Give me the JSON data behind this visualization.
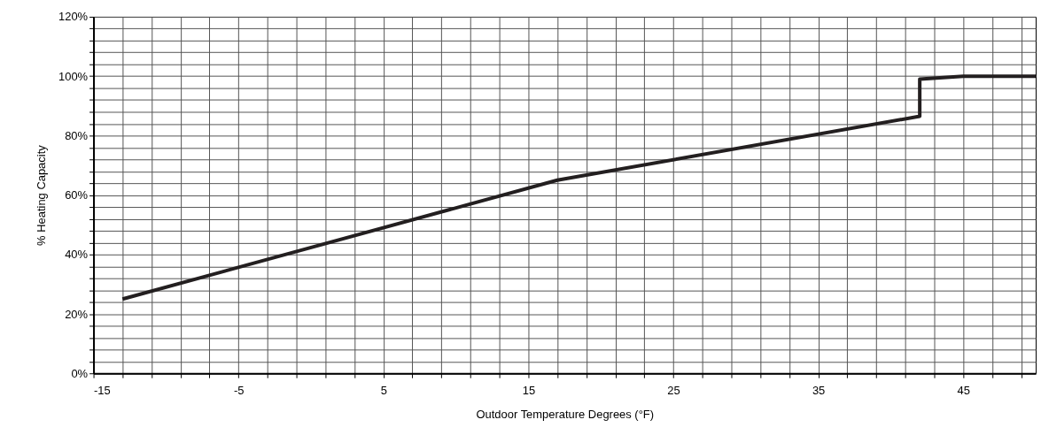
{
  "chart_data": {
    "type": "line",
    "xlabel": "Outdoor Temperature Degrees (°F)",
    "ylabel": "% Heating Capacity",
    "series": [
      {
        "color": "#231f20",
        "x": [
          -13,
          17,
          42,
          42,
          45,
          50
        ],
        "values": [
          25,
          65,
          86.5,
          99,
          100,
          100
        ]
      }
    ],
    "xlim": [
      -15,
      50
    ],
    "xticks": [
      -15,
      -5,
      5,
      15,
      25,
      35,
      45
    ],
    "ylim": [
      0,
      120
    ],
    "yticks": [
      {
        "value": 0,
        "label": "0%"
      },
      {
        "value": 20,
        "label": "20%"
      },
      {
        "value": 40,
        "label": "40%"
      },
      {
        "value": 60,
        "label": "60%"
      },
      {
        "value": 80,
        "label": "80%"
      },
      {
        "value": 100,
        "label": "100%"
      },
      {
        "value": 120,
        "label": "120%"
      }
    ],
    "grid": true,
    "marker": "none",
    "line_style": "solid"
  }
}
